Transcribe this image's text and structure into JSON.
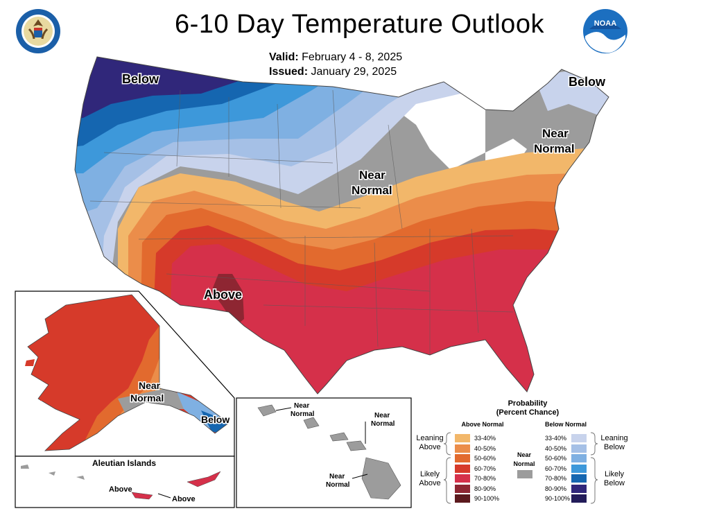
{
  "title": "6-10 Day Temperature Outlook",
  "valid_label": "Valid:",
  "valid_value": "February 4 - 8, 2025",
  "issued_label": "Issued:",
  "issued_value": "January 29, 2025",
  "logos": {
    "left": "commerce-seal",
    "right": "noaa-logo",
    "noaa_text": "NOAA"
  },
  "map_labels": {
    "below_nw": "Below",
    "below_ne": "Below",
    "near_normal_ne": [
      "Near",
      "Normal"
    ],
    "near_normal_center": [
      "Near",
      "Normal"
    ],
    "above": "Above",
    "alaska_near_normal": [
      "Near",
      "Normal"
    ],
    "alaska_below": "Below",
    "aleutian_title": "Aleutian Islands",
    "aleutian_above_1": "Above",
    "aleutian_above_2": "Above",
    "hawaii_nn_1": [
      "Near",
      "Normal"
    ],
    "hawaii_nn_2": [
      "Near",
      "Normal"
    ],
    "hawaii_nn_3": [
      "Near",
      "Normal"
    ]
  },
  "legend": {
    "title_line1": "Probability",
    "title_line2": "(Percent Chance)",
    "above_header": "Above Normal",
    "below_header": "Below Normal",
    "near_normal": [
      "Near",
      "Normal"
    ],
    "leaning_above": [
      "Leaning",
      "Above"
    ],
    "likely_above": [
      "Likely",
      "Above"
    ],
    "leaning_below": [
      "Leaning",
      "Below"
    ],
    "likely_below": [
      "Likely",
      "Below"
    ],
    "above_bins": [
      {
        "label": "33-40%",
        "color": "#f2b76a"
      },
      {
        "label": "40-50%",
        "color": "#eb8d4a"
      },
      {
        "label": "50-60%",
        "color": "#e26a2e"
      },
      {
        "label": "60-70%",
        "color": "#d63a2a"
      },
      {
        "label": "70-80%",
        "color": "#d5304a"
      },
      {
        "label": "80-90%",
        "color": "#8e2632"
      },
      {
        "label": "90-100%",
        "color": "#5c1a1e"
      }
    ],
    "below_bins": [
      {
        "label": "33-40%",
        "color": "#c8d3ec"
      },
      {
        "label": "40-50%",
        "color": "#a5c0e6"
      },
      {
        "label": "50-60%",
        "color": "#7fb0e2"
      },
      {
        "label": "60-70%",
        "color": "#3d98da"
      },
      {
        "label": "70-80%",
        "color": "#1566b0"
      },
      {
        "label": "80-90%",
        "color": "#30277a"
      },
      {
        "label": "90-100%",
        "color": "#231c5a"
      }
    ],
    "near_normal_color": "#9c9c9c"
  }
}
